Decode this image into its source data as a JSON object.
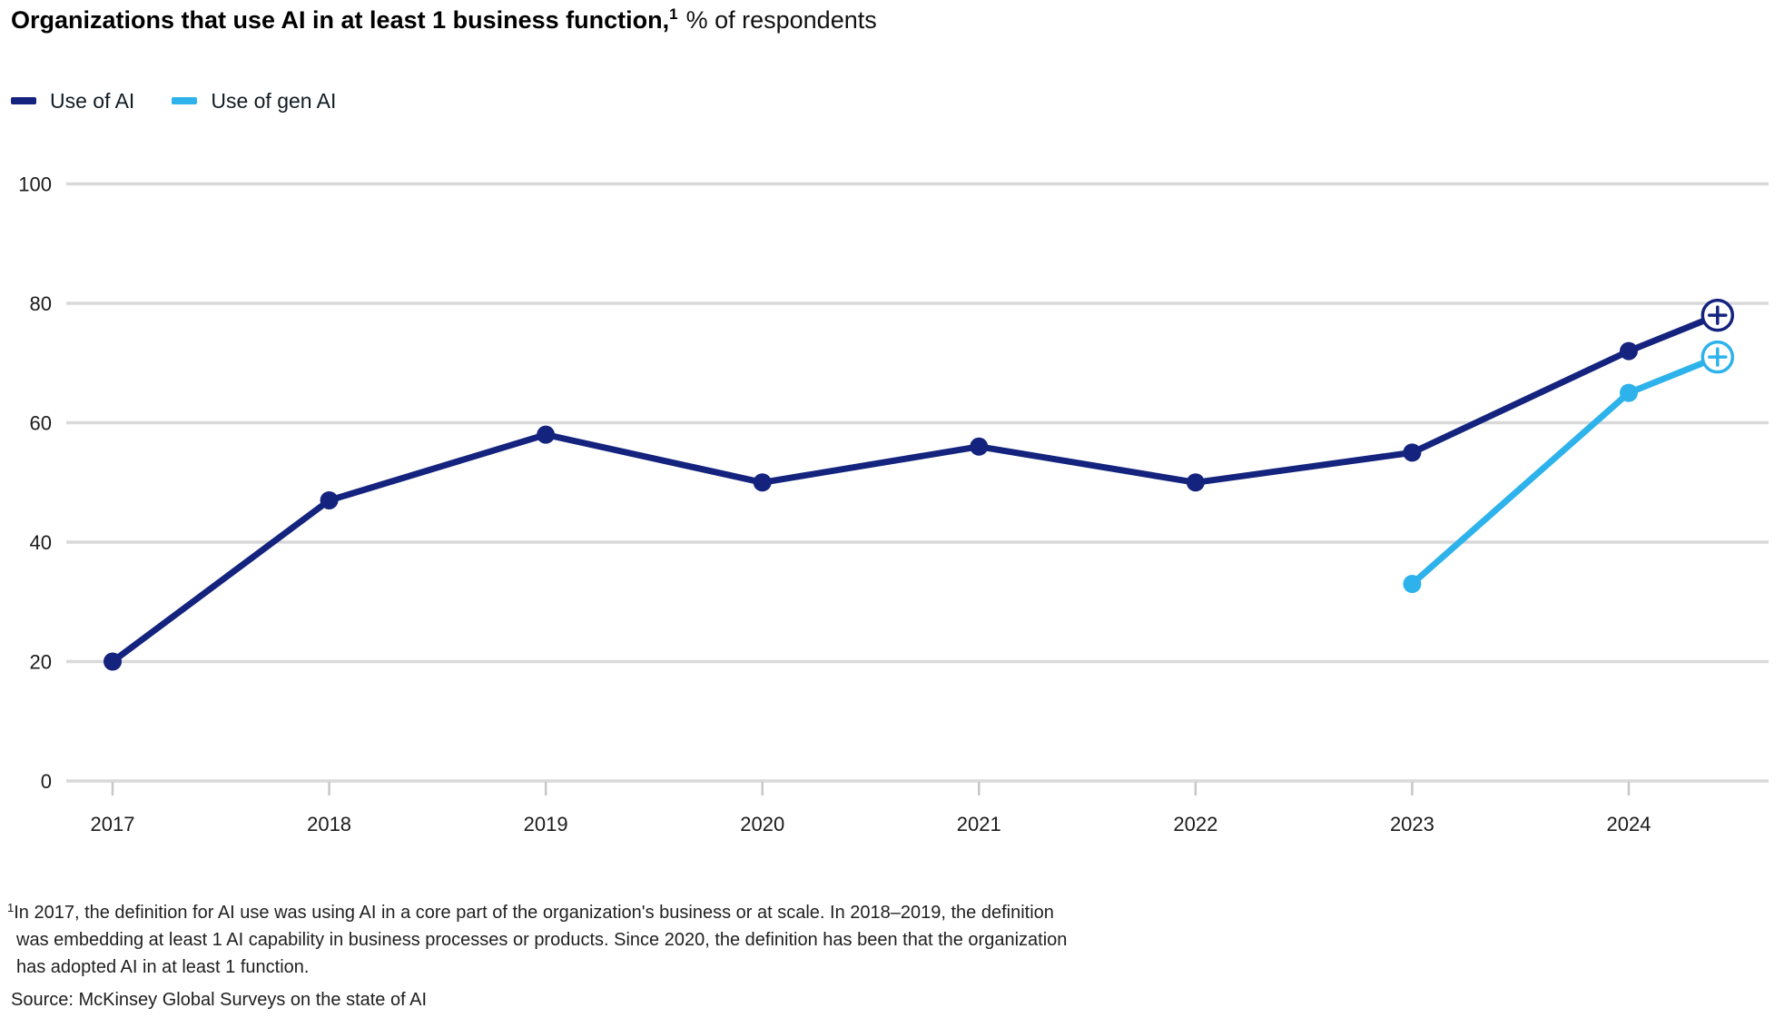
{
  "title": {
    "bold": "Organizations that use AI in at least 1 business function,",
    "superscript": "1",
    "regular": "% of respondents"
  },
  "legend": [
    {
      "label": "Use of AI",
      "color": "#14237d"
    },
    {
      "label": "Use of gen AI",
      "color": "#2db2eb"
    }
  ],
  "chart_data": {
    "type": "line",
    "title": "Organizations that use AI in at least 1 business function, % of respondents",
    "xlabel": "",
    "ylabel": "",
    "x_ticks": [
      2017,
      2018,
      2019,
      2020,
      2021,
      2022,
      2023,
      2024
    ],
    "y_ticks": [
      0,
      20,
      40,
      60,
      80,
      100
    ],
    "ylim": [
      0,
      100
    ],
    "grid": "horizontal",
    "legend_position": "top-left",
    "series": [
      {
        "name": "Use of AI",
        "color": "#14237d",
        "points": [
          {
            "x": 2017,
            "y": 20,
            "marker": "dot"
          },
          {
            "x": 2018,
            "y": 47,
            "marker": "dot"
          },
          {
            "x": 2019,
            "y": 58,
            "marker": "dot"
          },
          {
            "x": 2020,
            "y": 50,
            "marker": "dot"
          },
          {
            "x": 2021,
            "y": 56,
            "marker": "dot"
          },
          {
            "x": 2022,
            "y": 50,
            "marker": "dot"
          },
          {
            "x": 2023,
            "y": 55,
            "marker": "dot"
          },
          {
            "x": 2024,
            "y": 72,
            "marker": "dot"
          },
          {
            "x": 2024.41,
            "y": 78,
            "marker": "plus-circle"
          }
        ]
      },
      {
        "name": "Use of gen AI",
        "color": "#2db2eb",
        "points": [
          {
            "x": 2023,
            "y": 33,
            "marker": "dot"
          },
          {
            "x": 2024,
            "y": 65,
            "marker": "dot"
          },
          {
            "x": 2024.41,
            "y": 71,
            "marker": "plus-circle"
          }
        ]
      }
    ]
  },
  "footnote": {
    "superscript": "1",
    "lines": [
      "In 2017, the definition for AI use was using AI in a core part of the organization's business or at scale. In 2018–2019, the definition",
      "was embedding at least 1 AI capability in business processes or products. Since 2020, the definition has been that the organization",
      "has adopted AI in at least 1 function."
    ]
  },
  "source": "Source: McKinsey Global Surveys on the state of AI"
}
